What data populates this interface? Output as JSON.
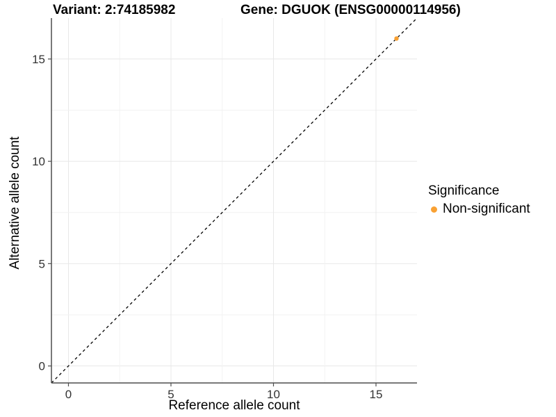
{
  "chart_data": {
    "type": "scatter",
    "title_left": "Variant: 2:74185982",
    "title_right": "Gene: DGUOK (ENSG00000114956)",
    "xlabel": "Reference allele count",
    "ylabel": "Alternative allele count",
    "xlim": [
      -0.83,
      17.0
    ],
    "ylim": [
      -0.83,
      17.0
    ],
    "xticks": [
      0,
      5,
      10,
      15
    ],
    "yticks": [
      0,
      5,
      10,
      15
    ],
    "grid": "on",
    "grid_step_minor": 2.5,
    "identity_line": {
      "type": "dashed",
      "equation": "y = x",
      "color": "#000000"
    },
    "series": [
      {
        "name": "Non-significant",
        "color": "#F9A133",
        "points": [
          {
            "x": 16,
            "y": 16
          }
        ]
      }
    ],
    "legend": {
      "position": "right",
      "title": "Significance",
      "entries": [
        {
          "label": "Non-significant",
          "color": "#F9A133"
        }
      ]
    },
    "style": {
      "axis_line_color": "#4D4D4D",
      "tick_label_color": "#333333",
      "grid_major_color": "#E8E8E8",
      "grid_minor_color": "#F2F2F2"
    }
  }
}
